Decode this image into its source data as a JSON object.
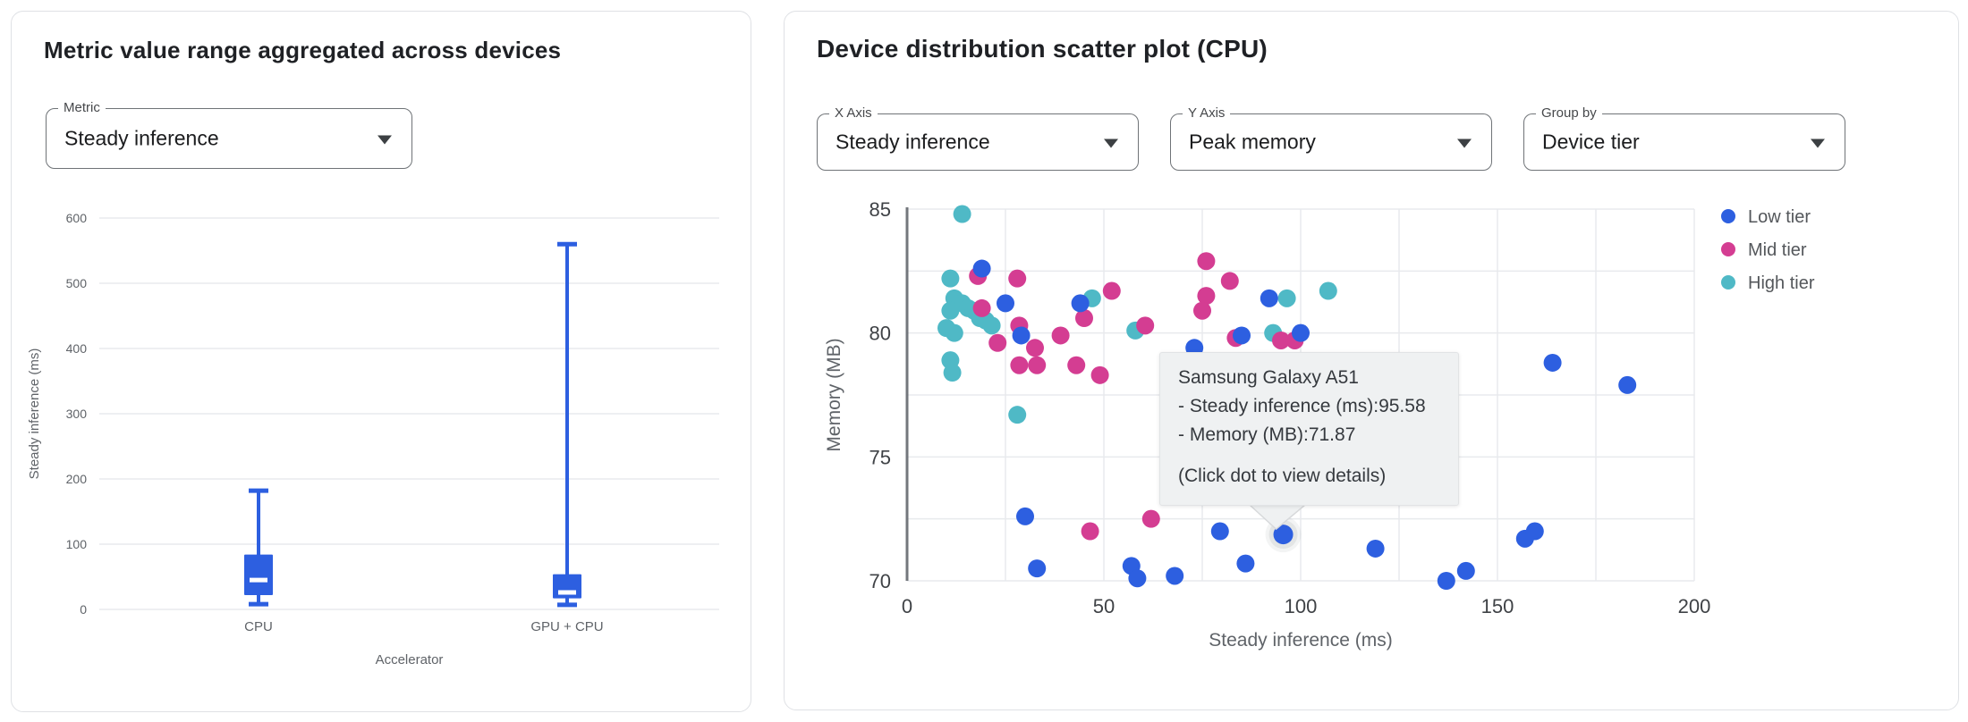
{
  "left_panel": {
    "title": "Metric value range aggregated across devices",
    "metric_select": {
      "label": "Metric",
      "value": "Steady inference"
    },
    "chart_data": {
      "type": "boxplot",
      "xlabel": "Accelerator",
      "ylabel": "Steady inference (ms)",
      "ylim": [
        0,
        600
      ],
      "yticks": [
        0,
        100,
        200,
        300,
        400,
        500,
        600
      ],
      "grid": true,
      "box_color": "#2d5fe0",
      "median_color": "#ffffff",
      "categories": [
        "CPU",
        "GPU + CPU"
      ],
      "boxes": [
        {
          "category": "CPU",
          "min": 8,
          "q1": 22,
          "median": 45,
          "q3": 84,
          "max": 182
        },
        {
          "category": "GPU + CPU",
          "min": 7,
          "q1": 17,
          "median": 26,
          "q3": 54,
          "max": 560
        }
      ]
    }
  },
  "right_panel": {
    "title": "Device distribution scatter plot (CPU)",
    "x_axis_select": {
      "label": "X Axis",
      "value": "Steady inference"
    },
    "y_axis_select": {
      "label": "Y Axis",
      "value": "Peak memory"
    },
    "group_by_select": {
      "label": "Group by",
      "value": "Device tier"
    },
    "chart_data": {
      "type": "scatter",
      "xlabel": "Steady inference (ms)",
      "ylabel": "Memory (MB)",
      "xlim": [
        0,
        200
      ],
      "ylim": [
        70,
        85
      ],
      "xticks": [
        0,
        50,
        100,
        150,
        200
      ],
      "yticks": [
        70,
        75,
        80,
        85
      ],
      "minor_grid_x_step": 25,
      "minor_grid_y_step": 2.5,
      "grid": true,
      "legend_position": "right",
      "series": [
        {
          "name": "High tier",
          "color": "#4fb9c6",
          "points": [
            [
              14,
              84.8
            ],
            [
              11,
              82.2
            ],
            [
              12,
              81.4
            ],
            [
              14,
              81.2
            ],
            [
              15.5,
              81.0
            ],
            [
              17,
              80.9
            ],
            [
              18.5,
              80.6
            ],
            [
              20,
              80.5
            ],
            [
              21.5,
              80.3
            ],
            [
              11,
              80.9
            ],
            [
              10,
              80.2
            ],
            [
              12,
              80.0
            ],
            [
              11,
              78.9
            ],
            [
              11.5,
              78.4
            ],
            [
              47,
              81.4
            ],
            [
              58,
              80.1
            ],
            [
              28,
              76.7
            ],
            [
              93,
              80.0
            ],
            [
              96.5,
              81.4
            ],
            [
              107,
              81.7
            ]
          ]
        },
        {
          "name": "Mid tier",
          "color": "#d43d92",
          "points": [
            [
              18,
              82.3
            ],
            [
              28,
              82.2
            ],
            [
              19,
              81.0
            ],
            [
              28.5,
              80.3
            ],
            [
              23,
              79.6
            ],
            [
              32.5,
              79.4
            ],
            [
              39,
              79.9
            ],
            [
              45,
              80.6
            ],
            [
              52,
              81.7
            ],
            [
              28.5,
              78.7
            ],
            [
              33,
              78.7
            ],
            [
              43,
              78.7
            ],
            [
              49,
              78.3
            ],
            [
              60.5,
              80.3
            ],
            [
              62,
              72.5
            ],
            [
              46.5,
              72.0
            ],
            [
              76,
              82.9
            ],
            [
              82,
              82.1
            ],
            [
              76,
              81.5
            ],
            [
              75,
              80.9
            ],
            [
              83.5,
              79.8
            ],
            [
              95,
              79.7
            ],
            [
              98.5,
              79.7
            ]
          ]
        },
        {
          "name": "Low tier",
          "color": "#2d5fe0",
          "points": [
            [
              19,
              82.6
            ],
            [
              25,
              81.2
            ],
            [
              29,
              79.9
            ],
            [
              44,
              81.2
            ],
            [
              73,
              79.4
            ],
            [
              85,
              79.9
            ],
            [
              92,
              81.4
            ],
            [
              100,
              80.0
            ],
            [
              30,
              72.6
            ],
            [
              33,
              70.5
            ],
            [
              57,
              70.6
            ],
            [
              58.5,
              70.1
            ],
            [
              68,
              70.2
            ],
            [
              79.5,
              72.0
            ],
            [
              86,
              70.7
            ],
            [
              95.58,
              71.87
            ],
            [
              119,
              71.3
            ],
            [
              137,
              70.0
            ],
            [
              142,
              70.4
            ],
            [
              157,
              71.7
            ],
            [
              159.5,
              72.0
            ],
            [
              164,
              78.8
            ],
            [
              183,
              77.9
            ]
          ]
        }
      ],
      "legend": [
        {
          "name": "Low tier",
          "color": "#2d5fe0"
        },
        {
          "name": "Mid tier",
          "color": "#d43d92"
        },
        {
          "name": "High tier",
          "color": "#4fb9c6"
        }
      ],
      "highlight": {
        "series": "Low tier",
        "x": 95.58,
        "y": 71.87
      }
    },
    "tooltip": {
      "title": "Samsung Galaxy A51",
      "lines": [
        "- Steady inference (ms):95.58",
        "- Memory (MB):71.87"
      ],
      "footer": "(Click dot to view details)"
    }
  },
  "colors": {
    "grid": "#e8eaed",
    "axis": "#73777c",
    "tick_text": "#3f4246",
    "muted_text": "#5f6368",
    "tooltip_bg": "#eff1f2"
  }
}
